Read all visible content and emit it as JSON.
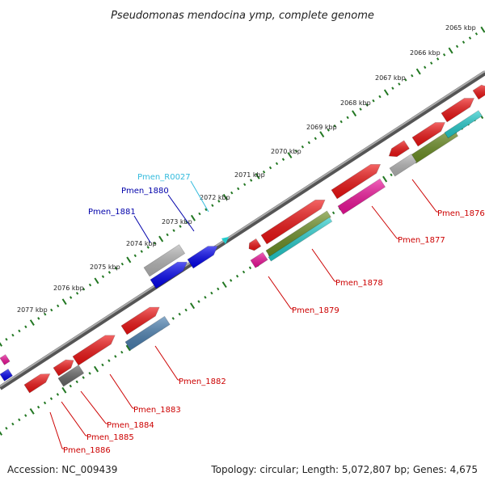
{
  "title": "Pseudomonas mendocina ymp, complete genome",
  "footer": {
    "accession": "Accession: NC_009439",
    "summary": "Topology: circular; Length: 5,072,807 bp; Genes: 4,675"
  },
  "ticks": [
    "2065 kbp",
    "2066 kbp",
    "2067 kbp",
    "2068 kbp",
    "2069 kbp",
    "2070 kbp",
    "2071 kbp",
    "2072 kbp",
    "2073 kbp",
    "2074 kbp",
    "2075 kbp",
    "2076 kbp",
    "2077 kbp"
  ],
  "genes_outer": [
    {
      "name": "Pmen_1876",
      "label_color": "#cc0000"
    },
    {
      "name": "Pmen_1877",
      "label_color": "#cc0000"
    },
    {
      "name": "Pmen_1878",
      "label_color": "#cc0000"
    },
    {
      "name": "Pmen_1879",
      "label_color": "#cc0000"
    },
    {
      "name": "Pmen_1882",
      "label_color": "#cc0000"
    },
    {
      "name": "Pmen_1883",
      "label_color": "#cc0000"
    },
    {
      "name": "Pmen_1884",
      "label_color": "#cc0000"
    },
    {
      "name": "Pmen_1885",
      "label_color": "#cc0000"
    },
    {
      "name": "Pmen_1886",
      "label_color": "#cc0000"
    }
  ],
  "genes_inner": [
    {
      "name": "Pmen_R0027",
      "label_color": "#33bbdd"
    },
    {
      "name": "Pmen_1880",
      "label_color": "#0000aa"
    },
    {
      "name": "Pmen_1881",
      "label_color": "#0000aa"
    }
  ],
  "colors": {
    "cds_red": "#ee1111",
    "trna_cyan": "#22cccc",
    "misc_magenta": "#ee1199",
    "rrna_olive": "#6b8e23",
    "pseudo_grey": "#b5b5b5",
    "reverse_blue": "#0000ee",
    "steel_blue": "#4a7fb0",
    "backbone": "#888888",
    "tick_green": "#227722"
  }
}
